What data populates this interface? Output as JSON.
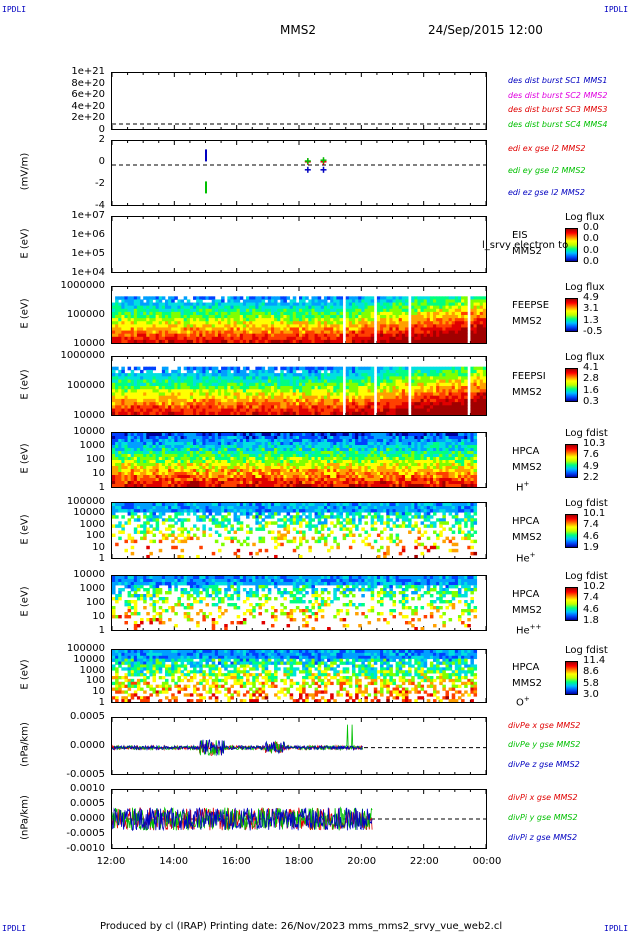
{
  "corner_labels": {
    "tl": "IPDLI",
    "tr": "IPDLI",
    "bl": "IPDLI",
    "br": "IPDLI"
  },
  "header": {
    "title": "MMS2",
    "datetime": "24/Sep/2015 12:00"
  },
  "footer": {
    "text": "Produced by cl (IRAP)   Printing date: 26/Nov/2023   mms_mms2_srvy_vue_web2.cl"
  },
  "colors": {
    "mms1": "#0000c0",
    "mms2": "#e000e0",
    "mms3": "#e00000",
    "mms4": "#00c000",
    "x_comp": "#e00000",
    "y_comp": "#00c000",
    "z_comp": "#0000c0"
  },
  "chart_data": [
    {
      "type": "line",
      "id": "density",
      "yticks": [
        "1e+21",
        "8e+20",
        "6e+20",
        "4e+20",
        "2e+20",
        "0"
      ],
      "legend": [
        "des dist burst SC1 MMS1",
        "des dist burst SC2 MMS2",
        "des dist burst SC3 MMS3",
        "des dist burst SC4 MMS4"
      ]
    },
    {
      "type": "scatter",
      "id": "edi",
      "ylabel": "(mV/m)",
      "yticks": [
        "2",
        "0",
        "-2",
        "-4"
      ],
      "ylim": [
        -5,
        3
      ],
      "legend": [
        "edi ex gse l2 MMS2",
        "edi ey gse l2 MMS2",
        "edi ez gse l2 MMS2"
      ],
      "series": [
        {
          "name": "edi ex gse l2 MMS2",
          "points": [
            [
              18.25,
              0.4
            ],
            [
              18.75,
              0.4
            ]
          ]
        },
        {
          "name": "edi ey gse l2 MMS2",
          "points": [
            [
              15.0,
              -2.8
            ],
            [
              18.25,
              0.5
            ],
            [
              18.75,
              0.6
            ]
          ]
        },
        {
          "name": "edi ez gse l2 MMS2",
          "points": [
            [
              15.0,
              1.2
            ],
            [
              18.25,
              -0.6
            ],
            [
              18.75,
              -0.6
            ]
          ]
        }
      ]
    },
    {
      "type": "heatmap",
      "id": "eis",
      "ylabel": "E (eV)",
      "yticks": [
        "1e+07",
        "1e+06",
        "1e+05",
        "1e+04"
      ],
      "right_labels": [
        "EIS",
        "MMS2"
      ],
      "overlay_text": "l_srvy electron to",
      "cbar_title": "Log flux",
      "cbar_values": [
        "0.0",
        "0.0",
        "0.0",
        "0.0"
      ]
    },
    {
      "type": "heatmap",
      "id": "feepse",
      "ylabel": "E (eV)",
      "yticks": [
        "1000000",
        "100000",
        "10000"
      ],
      "right_labels": [
        "FEEPSE",
        "MMS2"
      ],
      "cbar_title": "Log flux",
      "cbar_values": [
        "4.9",
        "3.1",
        "1.3",
        "-0.5"
      ]
    },
    {
      "type": "heatmap",
      "id": "feepsi",
      "ylabel": "E (eV)",
      "yticks": [
        "1000000",
        "100000",
        "10000"
      ],
      "right_labels": [
        "FEEPSI",
        "MMS2"
      ],
      "cbar_title": "Log flux",
      "cbar_values": [
        "4.1",
        "2.8",
        "1.6",
        "0.3"
      ]
    },
    {
      "type": "heatmap",
      "id": "hpca_h",
      "ylabel": "E (eV)",
      "yticks": [
        "10000",
        "1000",
        "100",
        "10",
        "1"
      ],
      "right_labels": [
        "HPCA",
        "MMS2"
      ],
      "species": "H",
      "species_sup": "+",
      "cbar_title": "Log fdist",
      "cbar_values": [
        "10.3",
        "7.6",
        "4.9",
        "2.2"
      ]
    },
    {
      "type": "heatmap",
      "id": "hpca_he",
      "ylabel": "E (eV)",
      "yticks": [
        "100000",
        "10000",
        "1000",
        "100",
        "10",
        "1"
      ],
      "right_labels": [
        "HPCA",
        "MMS2"
      ],
      "species": "He",
      "species_sup": "+",
      "cbar_title": "Log fdist",
      "cbar_values": [
        "10.1",
        "7.4",
        "4.6",
        "1.9"
      ]
    },
    {
      "type": "heatmap",
      "id": "hpca_hepp",
      "ylabel": "E (eV)",
      "yticks": [
        "10000",
        "1000",
        "100",
        "10",
        "1"
      ],
      "right_labels": [
        "HPCA",
        "MMS2"
      ],
      "species": "He",
      "species_sup": "++",
      "cbar_title": "Log fdist",
      "cbar_values": [
        "10.2",
        "7.4",
        "4.6",
        "1.8"
      ]
    },
    {
      "type": "heatmap",
      "id": "hpca_o",
      "ylabel": "E (eV)",
      "yticks": [
        "100000",
        "10000",
        "1000",
        "100",
        "10",
        "1"
      ],
      "right_labels": [
        "HPCA",
        "MMS2"
      ],
      "species": "O",
      "species_sup": "+",
      "cbar_title": "Log fdist",
      "cbar_values": [
        "11.4",
        "8.6",
        "5.8",
        "3.0"
      ]
    },
    {
      "type": "line",
      "id": "divpe",
      "ylabel": "(nPa/km)",
      "yticks": [
        "0.0005",
        "0.0000",
        "-0.0005"
      ],
      "ylim": [
        -0.0008,
        0.0009
      ],
      "legend": [
        "divPe x gse MMS2",
        "divPe y gse MMS2",
        "divPe z gse MMS2"
      ]
    },
    {
      "type": "line",
      "id": "divpi",
      "ylabel": "(nPa/km)",
      "yticks": [
        "0.0010",
        "0.0005",
        "0.0000",
        "-0.0005",
        "-0.0010"
      ],
      "ylim": [
        -0.0014,
        0.0014
      ],
      "legend": [
        "divPi x gse MMS2",
        "divPi y gse MMS2",
        "divPi z gse MMS2"
      ]
    }
  ],
  "x_axis": {
    "ticks": [
      "12:00",
      "14:00",
      "16:00",
      "18:00",
      "20:00",
      "22:00",
      "00:00"
    ],
    "range_hours": [
      12,
      24
    ]
  }
}
